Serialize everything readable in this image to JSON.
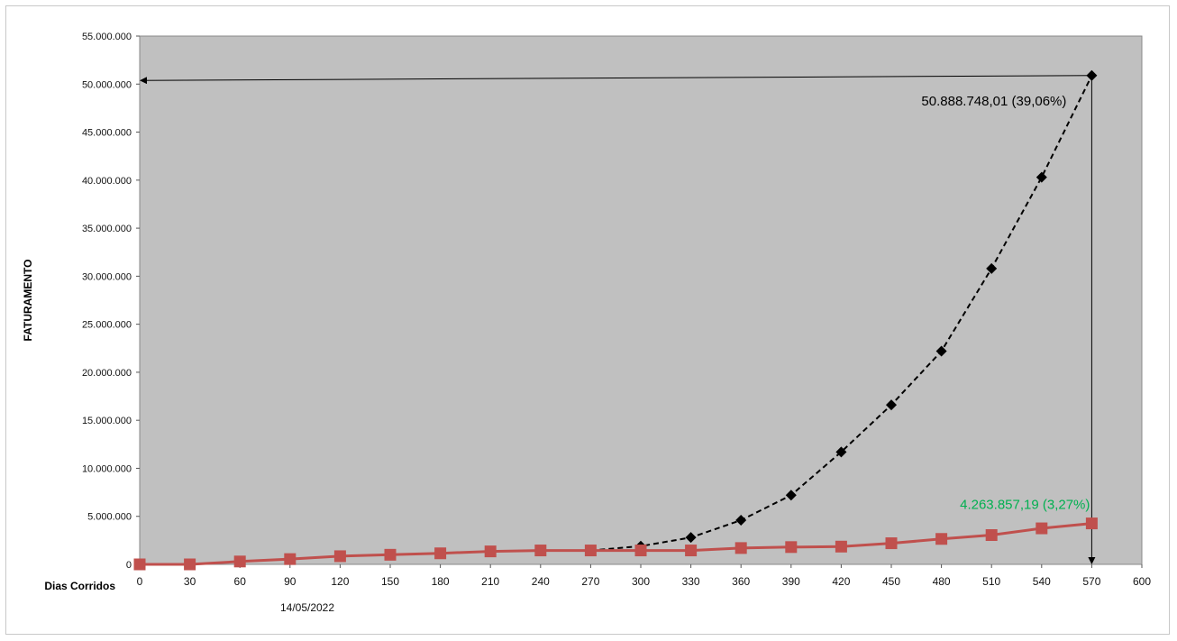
{
  "chart_data": {
    "type": "line",
    "title": "",
    "xlabel": "Dias Corridos",
    "ylabel": "FATURAMENTO",
    "xlim": [
      0,
      600
    ],
    "ylim": [
      0,
      55000000
    ],
    "x_ticks": [
      "0",
      "30",
      "60",
      "90",
      "120",
      "150",
      "180",
      "210",
      "240",
      "270",
      "300",
      "330",
      "360",
      "390",
      "420",
      "450",
      "480",
      "510",
      "540",
      "570",
      "600"
    ],
    "y_ticks": [
      "0",
      "5.000.000",
      "10.000.000",
      "15.000.000",
      "20.000.000",
      "25.000.000",
      "30.000.000",
      "35.000.000",
      "40.000.000",
      "45.000.000",
      "50.000.000",
      "55.000.000"
    ],
    "x_annotation": "14/05/2022",
    "grid": false,
    "series": [
      {
        "style": "dashed",
        "marker": "diamond",
        "color": "#000000",
        "x": [
          270,
          300,
          330,
          360,
          390,
          420,
          450,
          480,
          510,
          540,
          570
        ],
        "values": [
          1450000,
          1900000,
          2800000,
          4600000,
          7200000,
          11700000,
          16600000,
          22200000,
          30800000,
          40300000,
          50888748.01
        ]
      },
      {
        "style": "solid",
        "marker": "square",
        "color": "#c0504d",
        "x": [
          0,
          30,
          60,
          90,
          120,
          150,
          180,
          210,
          240,
          270,
          300,
          330,
          360,
          390,
          420,
          450,
          480,
          510,
          540,
          570
        ],
        "values": [
          0,
          0,
          300000,
          550000,
          850000,
          1000000,
          1150000,
          1350000,
          1450000,
          1450000,
          1450000,
          1450000,
          1700000,
          1800000,
          1850000,
          2200000,
          2650000,
          3050000,
          3750000,
          4263857.19
        ]
      }
    ],
    "annotations": [
      {
        "text": "50.888.748,01 (39,06%)",
        "x": 570,
        "y": 50888748.01,
        "color": "#000000"
      },
      {
        "text": "4.263.857,19 (3,27%)",
        "x": 570,
        "y": 4263857.19,
        "color": "#00b050"
      }
    ],
    "plot_background": "#c0c0c0"
  }
}
